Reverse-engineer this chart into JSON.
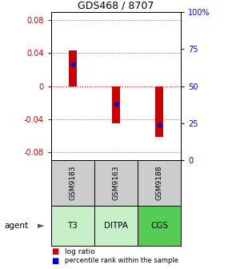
{
  "title": "GDS468 / 8707",
  "samples": [
    "GSM9183",
    "GSM9163",
    "GSM9188"
  ],
  "agents": [
    "T3",
    "DITPA",
    "CGS"
  ],
  "log_ratios": [
    0.043,
    -0.045,
    -0.062
  ],
  "percentile_ranks": [
    0.65,
    0.38,
    0.24
  ],
  "ylim": [
    -0.09,
    0.09
  ],
  "yticks_left": [
    -0.08,
    -0.04,
    0.0,
    0.04,
    0.08
  ],
  "yticks_right": [
    0,
    25,
    50,
    75,
    100
  ],
  "bar_color": "#cc0000",
  "percentile_color": "#0000cc",
  "agent_colors": [
    "#c8f0c8",
    "#c8f0c8",
    "#55cc55"
  ],
  "sample_bg": "#cccccc",
  "grid_color": "#333333",
  "zero_line_color": "#cc0000",
  "bar_width": 0.18
}
